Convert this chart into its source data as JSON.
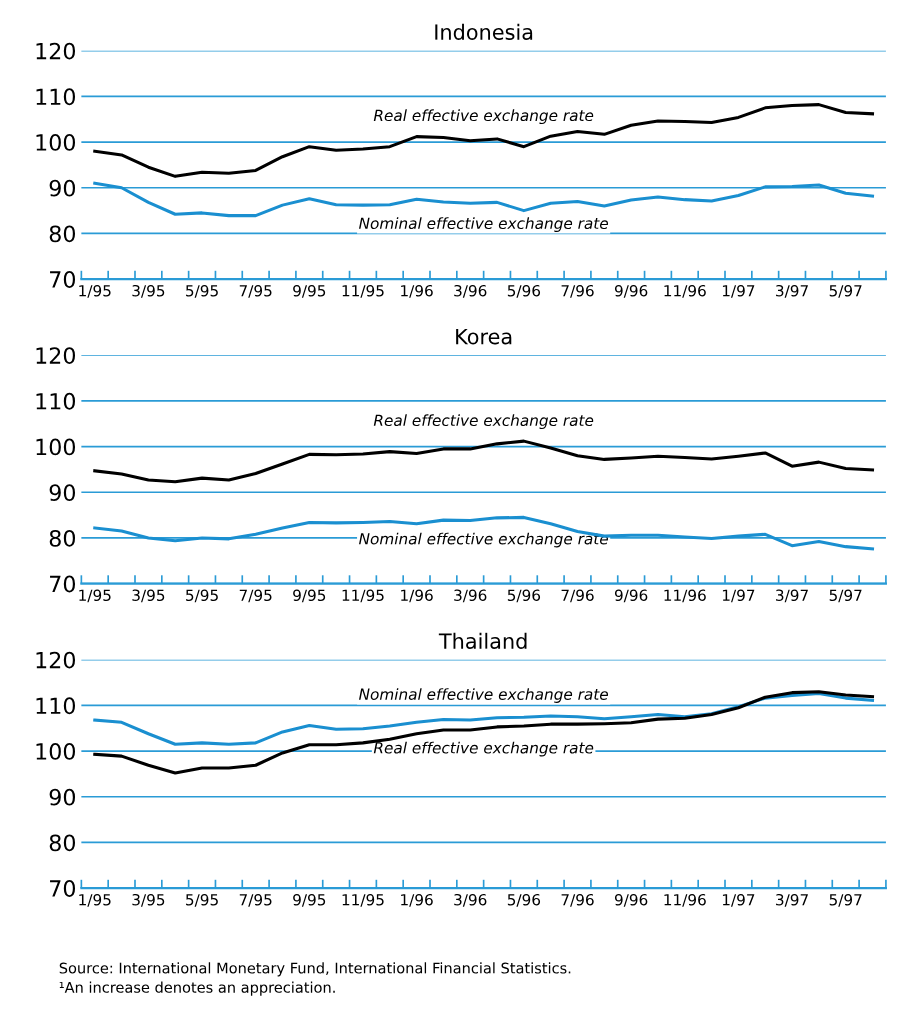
{
  "chart_data": [
    {
      "type": "line",
      "title": "Indonesia",
      "categories": [
        "1/95",
        null,
        "3/95",
        null,
        "5/95",
        null,
        "7/95",
        null,
        "9/95",
        null,
        "11/95",
        null,
        "1/96",
        null,
        "3/96",
        null,
        "5/96",
        null,
        "7/96",
        null,
        "9/96",
        null,
        "11/96",
        null,
        "1/97",
        null,
        "3/97",
        null,
        "5/97",
        null
      ],
      "series": [
        {
          "name": "Real effective exchange rate",
          "color": "#000000",
          "values": [
            98.0,
            97.2,
            94.5,
            92.5,
            93.4,
            93.2,
            93.8,
            96.8,
            99.0,
            98.2,
            98.5,
            99.0,
            101.2,
            101.0,
            100.3,
            100.7,
            99.0,
            101.3,
            102.3,
            101.7,
            103.7,
            104.6,
            104.5,
            104.3,
            105.4,
            107.5,
            108.0,
            108.2,
            106.5,
            106.2
          ]
        },
        {
          "name": "Nominal effective exchange rate",
          "color": "#1a8fd0",
          "values": [
            91.0,
            90.0,
            86.8,
            84.2,
            84.5,
            83.9,
            83.9,
            86.2,
            87.6,
            86.3,
            86.2,
            86.3,
            87.5,
            86.9,
            86.6,
            86.8,
            85.0,
            86.6,
            87.0,
            86.0,
            87.3,
            88.0,
            87.4,
            87.1,
            88.3,
            90.2,
            90.3,
            90.6,
            88.8,
            88.2
          ]
        }
      ],
      "ylim": [
        70,
        120
      ],
      "yticks": [
        70,
        80,
        90,
        100,
        110,
        120
      ],
      "grid": "y",
      "legend": false,
      "marker": "none",
      "line_style": "solid"
    },
    {
      "type": "line",
      "title": "Korea",
      "categories": [
        "1/95",
        null,
        "3/95",
        null,
        "5/95",
        null,
        "7/95",
        null,
        "9/95",
        null,
        "11/95",
        null,
        "1/96",
        null,
        "3/96",
        null,
        "5/96",
        null,
        "7/96",
        null,
        "9/96",
        null,
        "11/96",
        null,
        "1/97",
        null,
        "3/97",
        null,
        "5/97",
        null
      ],
      "series": [
        {
          "name": "Real effective exchange rate",
          "color": "#000000",
          "values": [
            94.7,
            94.0,
            92.7,
            92.3,
            93.1,
            92.7,
            94.1,
            96.2,
            98.3,
            98.2,
            98.4,
            98.9,
            98.5,
            99.5,
            99.5,
            100.6,
            101.2,
            99.7,
            98.0,
            97.2,
            97.5,
            97.9,
            97.6,
            97.3,
            97.9,
            98.6,
            95.7,
            96.6,
            95.2,
            94.9
          ]
        },
        {
          "name": "Nominal effective exchange rate",
          "color": "#1a8fd0",
          "values": [
            82.2,
            81.5,
            80.0,
            79.4,
            80.0,
            79.8,
            80.8,
            82.2,
            83.4,
            83.3,
            83.4,
            83.6,
            83.1,
            83.9,
            83.8,
            84.4,
            84.5,
            83.1,
            81.4,
            80.4,
            80.6,
            80.6,
            80.2,
            79.9,
            80.4,
            80.8,
            78.3,
            79.2,
            78.1,
            77.6
          ]
        }
      ],
      "ylim": [
        70,
        120
      ],
      "yticks": [
        70,
        80,
        90,
        100,
        110,
        120
      ],
      "grid": "y",
      "legend": false,
      "marker": "none",
      "line_style": "solid"
    },
    {
      "type": "line",
      "title": "Thailand",
      "categories": [
        "1/95",
        null,
        "3/95",
        null,
        "5/95",
        null,
        "7/95",
        null,
        "9/95",
        null,
        "11/95",
        null,
        "1/96",
        null,
        "3/96",
        null,
        "5/96",
        null,
        "7/96",
        null,
        "9/96",
        null,
        "11/96",
        null,
        "1/97",
        null,
        "3/97",
        null,
        "5/97",
        null
      ],
      "series": [
        {
          "name": "Nominal effective exchange rate",
          "color": "#1a8fd0",
          "values": [
            106.8,
            106.3,
            103.8,
            101.5,
            101.8,
            101.5,
            101.8,
            104.2,
            105.6,
            104.8,
            104.9,
            105.5,
            106.3,
            106.9,
            106.8,
            107.3,
            107.4,
            107.7,
            107.5,
            107.1,
            107.5,
            108.0,
            107.5,
            108.2,
            109.7,
            111.6,
            112.2,
            112.6,
            111.6,
            111.1
          ]
        },
        {
          "name": "Real effective exchange rate",
          "color": "#000000",
          "values": [
            99.3,
            98.9,
            96.9,
            95.2,
            96.3,
            96.3,
            96.9,
            99.6,
            101.4,
            101.4,
            101.8,
            102.6,
            103.8,
            104.6,
            104.6,
            105.3,
            105.5,
            105.9,
            105.9,
            106.0,
            106.2,
            107.0,
            107.2,
            108.0,
            109.5,
            111.8,
            112.8,
            113.0,
            112.3,
            111.9
          ]
        }
      ],
      "ylim": [
        70,
        120
      ],
      "yticks": [
        70,
        80,
        90,
        100,
        110,
        120
      ],
      "grid": "y",
      "legend": false,
      "marker": "none",
      "line_style": "solid",
      "annotations": [
        "Source: International Monetary Fund, International Financial Statistics.",
        "¹An increase denotes an appreciation."
      ]
    }
  ]
}
